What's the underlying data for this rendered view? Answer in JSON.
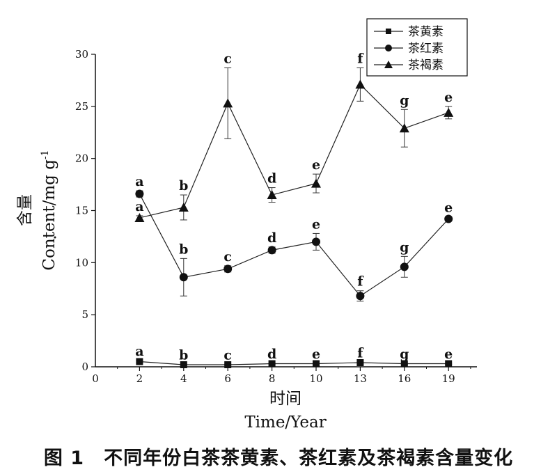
{
  "chart_data": {
    "type": "line",
    "xlabel": "时间",
    "xlabel_en": "Time/Year",
    "ylabel": "含量",
    "ylabel_en": "Content/mg g",
    "ylabel_sup": "-1",
    "ylabel_dot": "·",
    "ylim": [
      0,
      30
    ],
    "yticks": [
      "0",
      "5",
      "10",
      "15",
      "20",
      "25",
      "30"
    ],
    "xtick_origin": "0",
    "categories": [
      "2",
      "4",
      "6",
      "8",
      "10",
      "13",
      "16",
      "19"
    ],
    "grid": false,
    "legend_position": "top-right",
    "series": [
      {
        "name": "茶黄素",
        "marker": "square",
        "values": [
          0.5,
          0.2,
          0.2,
          0.3,
          0.3,
          0.4,
          0.3,
          0.3
        ],
        "errors": [
          0.1,
          0.05,
          0.05,
          0.05,
          0.05,
          0.05,
          0.05,
          0.05
        ],
        "labels": [
          "a",
          "b",
          "c",
          "d",
          "e",
          "f",
          "g",
          "e"
        ]
      },
      {
        "name": "茶红素",
        "marker": "circle",
        "values": [
          16.6,
          8.6,
          9.4,
          11.2,
          12.0,
          6.8,
          9.6,
          14.2
        ],
        "errors": [
          0.3,
          1.8,
          0.3,
          0.3,
          0.8,
          0.5,
          1.0,
          0.2
        ],
        "labels": [
          "a",
          "b",
          "c",
          "d",
          "e",
          "f",
          "g",
          "e"
        ]
      },
      {
        "name": "茶褐素",
        "marker": "triangle",
        "values": [
          14.3,
          15.3,
          25.3,
          16.5,
          17.6,
          27.1,
          22.9,
          24.4
        ],
        "errors": [
          0.2,
          1.2,
          3.4,
          0.7,
          0.9,
          1.6,
          1.8,
          0.6
        ],
        "labels": [
          "a",
          "b",
          "c",
          "d",
          "e",
          "f",
          "g",
          "e"
        ]
      }
    ]
  },
  "caption": "图 1　不同年份白茶茶黄素、茶红素及茶褐素含量变化"
}
